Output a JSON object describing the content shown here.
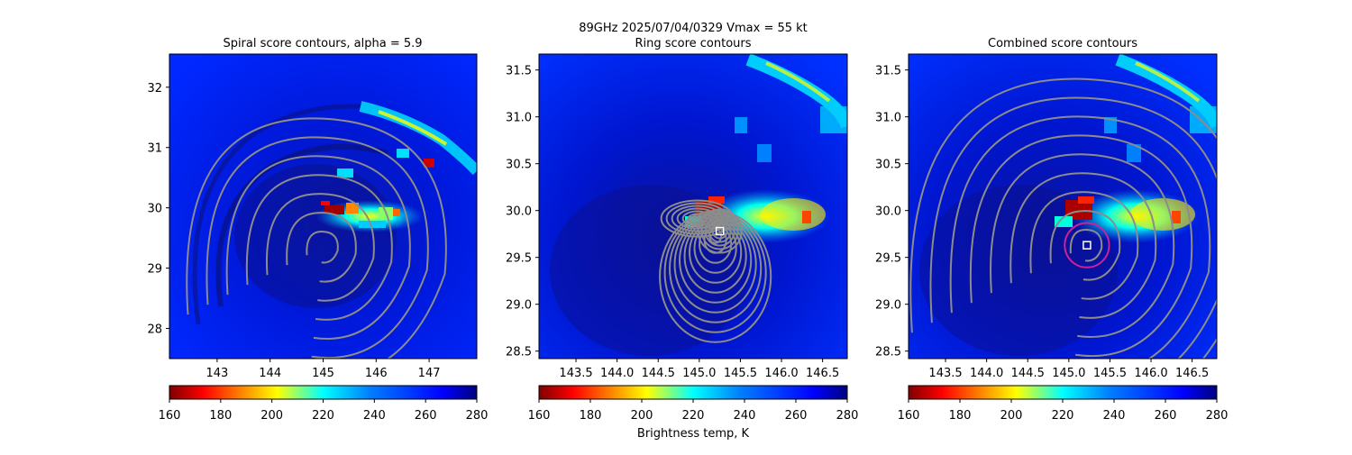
{
  "suptitle_line1": "89GHz  2025/07/04/0329    Vmax = 55 kt",
  "colors": {
    "contour": "#8c8c8c",
    "ring_circle": "#cc2299",
    "center_marker": "#ffffff"
  },
  "colorbar_xlabel": "Brightness temp, K",
  "chart_data": [
    {
      "type": "heatmap",
      "title": "Spiral score contours, alpha =  5.9",
      "xlim": [
        142.1,
        147.9
      ],
      "ylim": [
        27.5,
        32.55
      ],
      "xticks": [
        143,
        144,
        145,
        146,
        147
      ],
      "yticks": [
        28,
        29,
        30,
        31,
        32
      ],
      "colorbar": {
        "cmap": "jet_r",
        "range": [
          160,
          280
        ],
        "ticks": [
          160,
          180,
          200,
          220,
          240,
          260,
          280
        ]
      },
      "warm_features": [
        {
          "kind": "band",
          "x": 145.4,
          "y": 29.9,
          "note": "low Tb band 160-220 K near 144.9-146.0 E, 29.9-30.2 N"
        },
        {
          "kind": "arc",
          "x": 146.4,
          "y": 30.9,
          "note": "outer rainband 146.0-147.9 E, 30.2-31.7 N"
        }
      ],
      "contour_center": [
        145.0,
        29.35
      ]
    },
    {
      "type": "heatmap",
      "title": "Ring score contours",
      "xlim": [
        143.05,
        146.8
      ],
      "ylim": [
        28.42,
        31.67
      ],
      "xticks": [
        143.5,
        144.0,
        144.5,
        145.0,
        145.5,
        146.0,
        146.5
      ],
      "yticks": [
        28.5,
        29.0,
        29.5,
        30.0,
        30.5,
        31.0,
        31.5
      ],
      "colorbar": {
        "cmap": "jet_r",
        "range": [
          160,
          280
        ],
        "ticks": [
          160,
          180,
          200,
          220,
          240,
          260,
          280
        ]
      },
      "center_marker": [
        145.25,
        29.78
      ],
      "contour_center": [
        145.25,
        29.78
      ]
    },
    {
      "type": "heatmap",
      "title": "Combined score contours",
      "xlim": [
        143.05,
        146.8
      ],
      "ylim": [
        28.42,
        31.67
      ],
      "xticks": [
        143.5,
        144.0,
        144.5,
        145.0,
        145.5,
        146.0,
        146.5
      ],
      "yticks": [
        28.5,
        29.0,
        29.5,
        30.0,
        30.5,
        31.0,
        31.5
      ],
      "colorbar": {
        "cmap": "jet_r",
        "range": [
          160,
          280
        ],
        "ticks": [
          160,
          180,
          200,
          220,
          240,
          260,
          280
        ]
      },
      "center_marker": [
        145.22,
        29.63
      ],
      "ring_circle": {
        "x": 145.22,
        "y": 29.63,
        "r_deg": 0.27
      },
      "contour_center": [
        145.22,
        29.63
      ]
    }
  ]
}
